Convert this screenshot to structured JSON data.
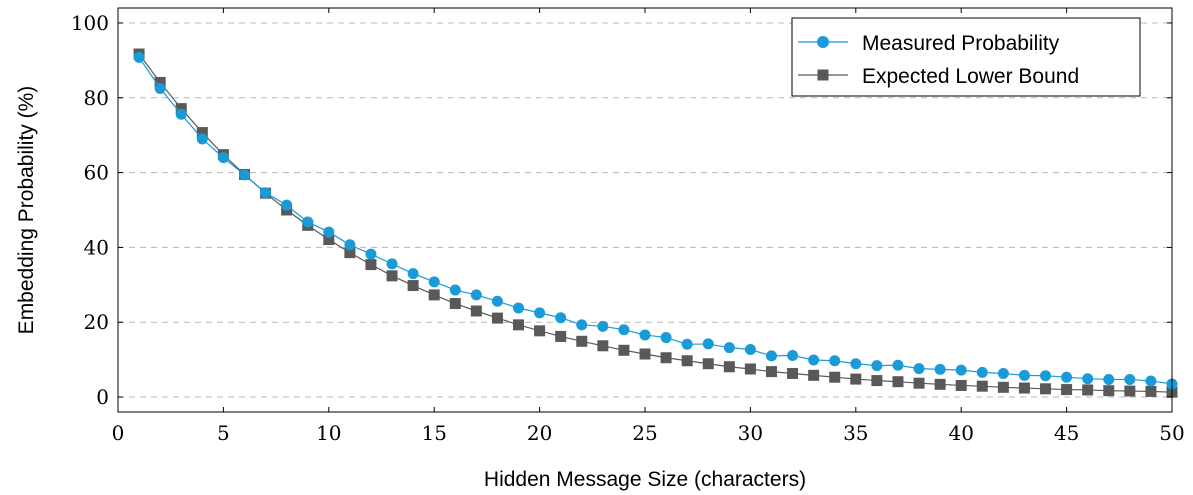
{
  "chart_data": {
    "type": "line",
    "title": "",
    "xlabel": "Hidden Message Size (characters)",
    "ylabel": "Embedding Probability (%)",
    "xlim": [
      0,
      50
    ],
    "ylim": [
      -4,
      104
    ],
    "xticks": [
      0,
      5,
      10,
      15,
      20,
      25,
      30,
      35,
      40,
      45,
      50
    ],
    "yticks": [
      0,
      20,
      40,
      60,
      80,
      100
    ],
    "grid": "horizontal dashed",
    "legend_position": "top-right",
    "x": [
      1,
      2,
      3,
      4,
      5,
      6,
      7,
      8,
      9,
      10,
      11,
      12,
      13,
      14,
      15,
      16,
      17,
      18,
      19,
      20,
      21,
      22,
      23,
      24,
      25,
      26,
      27,
      28,
      29,
      30,
      31,
      32,
      33,
      34,
      35,
      36,
      37,
      38,
      39,
      40,
      41,
      42,
      43,
      44,
      45,
      46,
      47,
      48,
      49,
      50
    ],
    "series": [
      {
        "name": "Measured Probability",
        "color": "#1a9bd7",
        "marker": "circle",
        "values": [
          90.8,
          82.5,
          75.6,
          69.0,
          64.0,
          59.4,
          54.6,
          51.3,
          46.8,
          44.1,
          40.7,
          38.2,
          35.6,
          33.0,
          30.8,
          28.6,
          27.3,
          25.6,
          23.8,
          22.5,
          21.2,
          19.3,
          18.9,
          18.0,
          16.6,
          15.9,
          14.1,
          14.2,
          13.2,
          12.7,
          11.0,
          11.1,
          9.9,
          9.7,
          8.9,
          8.4,
          8.5,
          7.6,
          7.4,
          7.2,
          6.6,
          6.3,
          5.8,
          5.7,
          5.3,
          4.9,
          4.7,
          4.7,
          4.3,
          3.5
        ]
      },
      {
        "name": "Expected Lower Bound",
        "color": "#595959",
        "marker": "square",
        "values": [
          91.7,
          84.1,
          77.1,
          70.7,
          64.8,
          59.5,
          54.5,
          50.0,
          45.9,
          42.1,
          38.6,
          35.4,
          32.4,
          29.8,
          27.3,
          25.0,
          23.0,
          21.1,
          19.3,
          17.7,
          16.2,
          14.9,
          13.7,
          12.5,
          11.5,
          10.5,
          9.7,
          8.9,
          8.1,
          7.5,
          6.8,
          6.3,
          5.8,
          5.3,
          4.8,
          4.4,
          4.1,
          3.7,
          3.4,
          3.1,
          2.9,
          2.6,
          2.4,
          2.2,
          2.0,
          1.9,
          1.7,
          1.6,
          1.5,
          1.3
        ]
      }
    ]
  }
}
